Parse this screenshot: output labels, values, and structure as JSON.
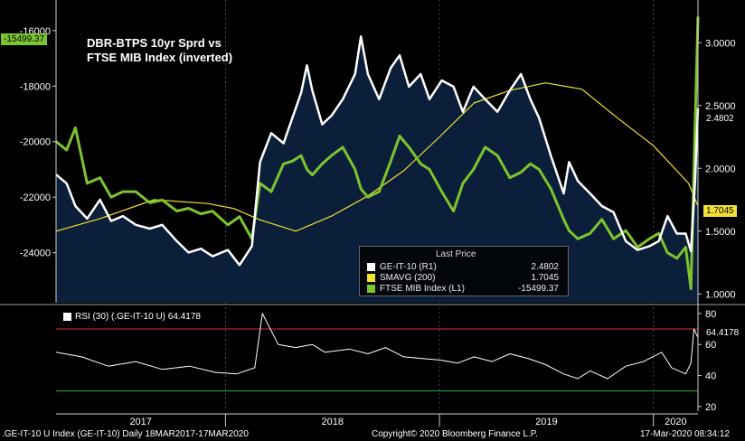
{
  "chart_data": [
    {
      "type": "line",
      "title": "DBR-BTPS 10yr Sprd vs\nFTSE MIB Index (inverted)",
      "title_lines": [
        "DBR-BTPS 10yr Sprd vs",
        "FTSE MIB Index (inverted)"
      ],
      "x_range": [
        "2017-03-18",
        "2020-03-17"
      ],
      "x_tick_labels": [
        "2017",
        "2018",
        "2019",
        "2020"
      ],
      "y_left_ticks": [
        "-16000",
        "-18000",
        "-20000",
        "-22000",
        "-24000"
      ],
      "y_left_range": [
        -25800,
        -14900
      ],
      "y_right_ticks": [
        "3.0000",
        "2.5000",
        "2.0000",
        "1.5000",
        "1.0000"
      ],
      "y_right_range": [
        0.93,
        3.34
      ],
      "legend_header": "Last Price",
      "series": [
        {
          "name": "GE-IT-10 (R1)",
          "axis": "right",
          "color": "#ffffff",
          "last": "2.4802",
          "x": [
            "2017-03-18",
            "2017-04-05",
            "2017-04-20",
            "2017-05-10",
            "2017-06-01",
            "2017-06-20",
            "2017-07-10",
            "2017-08-01",
            "2017-08-25",
            "2017-09-15",
            "2017-10-10",
            "2017-10-30",
            "2017-11-20",
            "2017-12-10",
            "2018-01-05",
            "2018-01-25",
            "2018-02-15",
            "2018-03-01",
            "2018-03-20",
            "2018-04-10",
            "2018-04-25",
            "2018-05-10",
            "2018-05-20",
            "2018-05-29",
            "2018-06-15",
            "2018-07-01",
            "2018-07-20",
            "2018-08-10",
            "2018-08-20",
            "2018-09-01",
            "2018-09-20",
            "2018-10-10",
            "2018-10-25",
            "2018-11-10",
            "2018-11-30",
            "2018-12-15",
            "2019-01-05",
            "2019-01-25",
            "2019-02-10",
            "2019-02-28",
            "2019-03-20",
            "2019-04-10",
            "2019-05-01",
            "2019-05-20",
            "2019-06-05",
            "2019-06-20",
            "2019-07-10",
            "2019-08-01",
            "2019-08-10",
            "2019-08-25",
            "2019-09-15",
            "2019-10-05",
            "2019-10-25",
            "2019-11-15",
            "2019-12-05",
            "2019-12-25",
            "2020-01-10",
            "2020-01-25",
            "2020-02-10",
            "2020-02-25",
            "2020-03-05",
            "2020-03-12",
            "2020-03-17"
          ],
          "values": [
            1.95,
            1.88,
            1.7,
            1.6,
            1.75,
            1.58,
            1.62,
            1.55,
            1.52,
            1.55,
            1.42,
            1.33,
            1.36,
            1.3,
            1.35,
            1.23,
            1.38,
            2.05,
            2.28,
            2.2,
            2.4,
            2.6,
            2.82,
            2.62,
            2.35,
            2.42,
            2.55,
            2.75,
            3.05,
            2.75,
            2.55,
            2.8,
            2.9,
            2.65,
            2.75,
            2.55,
            2.7,
            2.65,
            2.45,
            2.65,
            2.55,
            2.45,
            2.62,
            2.75,
            2.55,
            2.4,
            2.1,
            1.8,
            2.05,
            1.9,
            1.8,
            1.7,
            1.65,
            1.42,
            1.35,
            1.38,
            1.42,
            1.62,
            1.48,
            1.48,
            1.34,
            1.9,
            2.48
          ]
        },
        {
          "name": "SMAVG (200)",
          "axis": "right",
          "color": "#f2e033",
          "last": "1.7045",
          "x": [
            "2017-03-18",
            "2017-06-01",
            "2017-09-01",
            "2017-12-01",
            "2018-01-15",
            "2018-03-01",
            "2018-05-01",
            "2018-07-01",
            "2018-09-01",
            "2018-11-01",
            "2019-01-01",
            "2019-03-01",
            "2019-05-01",
            "2019-07-01",
            "2019-09-01",
            "2019-11-01",
            "2020-01-01",
            "2020-03-01",
            "2020-03-17"
          ],
          "values": [
            1.5,
            1.6,
            1.75,
            1.72,
            1.68,
            1.59,
            1.5,
            1.62,
            1.78,
            1.98,
            2.25,
            2.52,
            2.62,
            2.68,
            2.63,
            2.4,
            2.18,
            1.88,
            1.7
          ]
        },
        {
          "name": "FTSE MIB Index (L1)",
          "axis": "left",
          "color": "#7dc42e",
          "last": "-15499.37",
          "x": [
            "2017-03-18",
            "2017-04-05",
            "2017-04-20",
            "2017-05-10",
            "2017-06-01",
            "2017-06-20",
            "2017-07-10",
            "2017-08-01",
            "2017-08-25",
            "2017-09-15",
            "2017-10-10",
            "2017-10-30",
            "2017-11-20",
            "2017-12-10",
            "2018-01-05",
            "2018-01-25",
            "2018-02-15",
            "2018-03-01",
            "2018-03-20",
            "2018-04-10",
            "2018-04-25",
            "2018-05-10",
            "2018-05-20",
            "2018-05-29",
            "2018-06-15",
            "2018-07-01",
            "2018-07-20",
            "2018-08-10",
            "2018-08-20",
            "2018-09-01",
            "2018-09-20",
            "2018-10-10",
            "2018-10-25",
            "2018-11-10",
            "2018-11-30",
            "2018-12-15",
            "2019-01-05",
            "2019-01-25",
            "2019-02-10",
            "2019-02-28",
            "2019-03-20",
            "2019-04-10",
            "2019-05-01",
            "2019-05-20",
            "2019-06-05",
            "2019-06-20",
            "2019-07-10",
            "2019-08-01",
            "2019-08-10",
            "2019-08-25",
            "2019-09-15",
            "2019-10-05",
            "2019-10-25",
            "2019-11-15",
            "2019-12-05",
            "2019-12-25",
            "2020-01-10",
            "2020-01-25",
            "2020-02-10",
            "2020-02-25",
            "2020-03-05",
            "2020-03-10",
            "2020-03-17"
          ],
          "values": [
            -20000,
            -20300,
            -19500,
            -21500,
            -21300,
            -22000,
            -21800,
            -21800,
            -22200,
            -22100,
            -22500,
            -22400,
            -22600,
            -22500,
            -23000,
            -22700,
            -23500,
            -21500,
            -21800,
            -20800,
            -20700,
            -20500,
            -21000,
            -21200,
            -20800,
            -20500,
            -20200,
            -21000,
            -21700,
            -22000,
            -21800,
            -20700,
            -19800,
            -20200,
            -20800,
            -21000,
            -21800,
            -22500,
            -21500,
            -21000,
            -20200,
            -20500,
            -21300,
            -21100,
            -20800,
            -21000,
            -21700,
            -22800,
            -23200,
            -23500,
            -23300,
            -22800,
            -23500,
            -23200,
            -23800,
            -23500,
            -23300,
            -24000,
            -24200,
            -23800,
            -25300,
            -21000,
            -15499
          ]
        }
      ]
    },
    {
      "type": "line",
      "title": "RSI (30) (.GE-IT-10 U) 64.4178",
      "y_ticks": [
        "80",
        "60",
        "40",
        "20"
      ],
      "y_range": [
        17,
        84
      ],
      "reference_lines": [
        {
          "value": 70,
          "color": "#e03131"
        },
        {
          "value": 30,
          "color": "#2fae3f"
        }
      ],
      "series": [
        {
          "name": "RSI (30) (.GE-IT-10 U)",
          "color": "#ffffff",
          "last": "64.4178",
          "x": [
            "2017-03-18",
            "2017-05-01",
            "2017-06-15",
            "2017-08-01",
            "2017-09-15",
            "2017-11-01",
            "2017-12-15",
            "2018-01-20",
            "2018-02-20",
            "2018-03-05",
            "2018-04-01",
            "2018-05-01",
            "2018-05-29",
            "2018-06-20",
            "2018-08-01",
            "2018-09-01",
            "2018-10-01",
            "2018-11-01",
            "2018-12-01",
            "2019-01-01",
            "2019-02-01",
            "2019-03-01",
            "2019-04-01",
            "2019-05-01",
            "2019-06-01",
            "2019-07-01",
            "2019-08-01",
            "2019-08-25",
            "2019-09-15",
            "2019-10-15",
            "2019-11-15",
            "2019-12-15",
            "2020-01-15",
            "2020-02-01",
            "2020-02-25",
            "2020-03-05",
            "2020-03-10",
            "2020-03-17"
          ],
          "values": [
            55,
            52,
            46,
            49,
            44,
            46,
            42,
            41,
            45,
            80,
            60,
            58,
            60,
            55,
            57,
            54,
            58,
            52,
            51,
            50,
            48,
            52,
            49,
            54,
            51,
            47,
            41,
            38,
            43,
            38,
            46,
            49,
            55,
            45,
            41,
            48,
            70,
            64.4178
          ]
        }
      ]
    }
  ],
  "badges": {
    "ftse_last": "-15499.37",
    "ge_last": "2.4802",
    "smavg_last": "1.7045",
    "rsi_last": "64.4178"
  },
  "colors": {
    "background": "#000000",
    "area_fill": "#0b1f3a",
    "ge_line": "#ffffff",
    "smavg_line": "#f2e033",
    "ftse_line": "#7dc42e",
    "rsi_upper": "#e03131",
    "rsi_lower": "#2fae3f",
    "axis": "#cfcfcf",
    "grid": "#5a5a5a"
  },
  "footer": {
    "left": ".GE-IT-10 U Index (GE-IT-10)  Daily 18MAR2017-17MAR2020",
    "center": "Copyright© 2020 Bloomberg Finance L.P.",
    "right": "17-Mar-2020 08:34:12"
  }
}
